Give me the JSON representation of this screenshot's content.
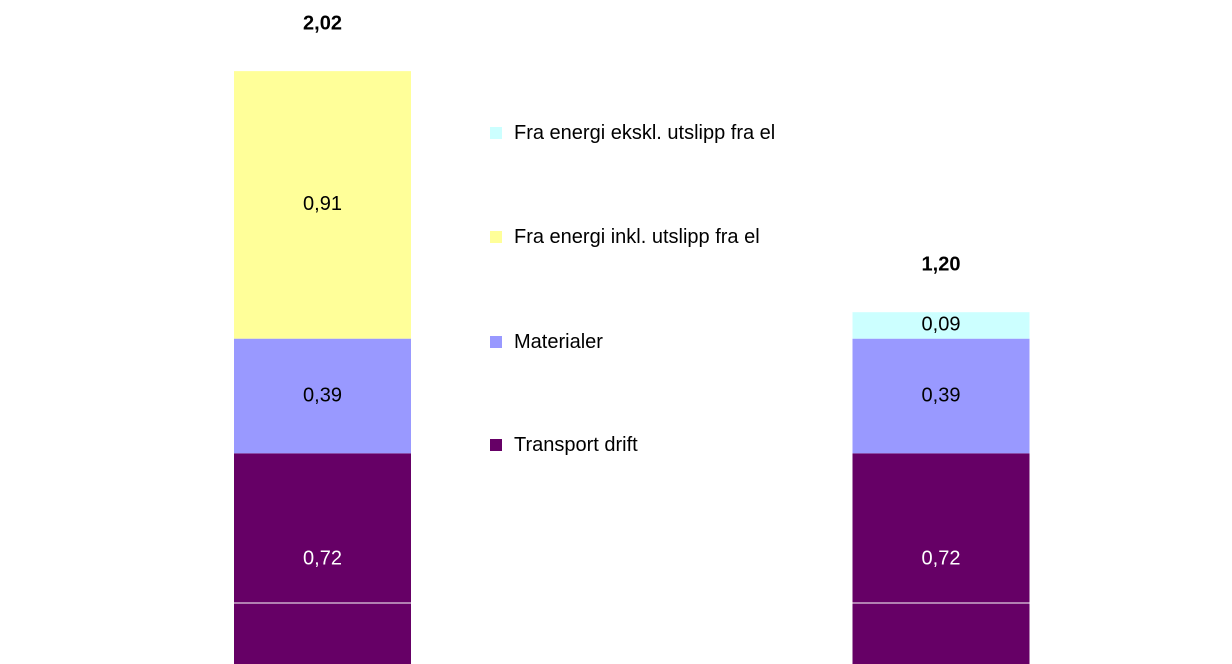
{
  "chart_data": {
    "type": "stacked_bar",
    "categories": [
      null,
      null
    ],
    "series": [
      {
        "name": "Transport drift",
        "color": "#660066",
        "values": [
          0.72,
          0.72
        ],
        "value_labels": [
          "0,72",
          "0,72"
        ]
      },
      {
        "name": "Materialer",
        "color": "#9999ff",
        "values": [
          0.39,
          0.39
        ],
        "value_labels": [
          "0,39",
          "0,39"
        ]
      },
      {
        "name": "Fra energi inkl. utslipp fra el",
        "color": "#ffff99",
        "values": [
          0.91,
          null
        ],
        "value_labels": [
          "0,91",
          null
        ]
      },
      {
        "name": "Fra energi ekskl. utslipp fra el",
        "color": "#ccffff",
        "values": [
          null,
          0.09
        ],
        "value_labels": [
          null,
          "0,09"
        ]
      }
    ],
    "totals": [
      2.02,
      1.2
    ],
    "total_labels": [
      "2,02",
      "1,20"
    ]
  }
}
